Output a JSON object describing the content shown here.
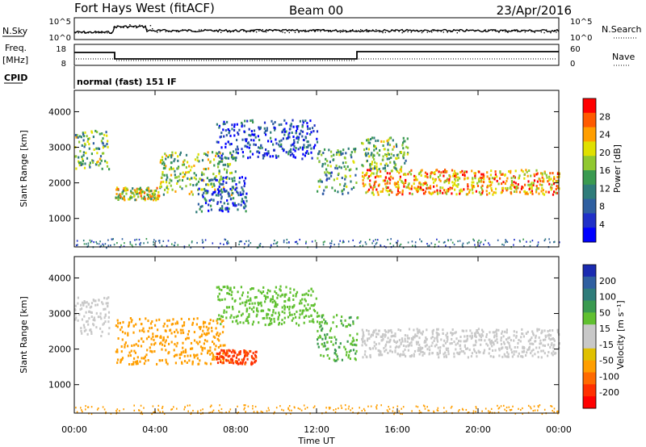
{
  "header": {
    "station": "Fort Hays West (fitACF)",
    "beam": "Beam 00",
    "date": "23/Apr/2016"
  },
  "summary": {
    "nsky_label": "N.Sky",
    "nsky_ticks": [
      "10^5",
      "10^0"
    ],
    "nsearch_label": "N.Search",
    "nsearch_ticks": [
      "10^5",
      "10^0"
    ],
    "freq_label": "Freq.",
    "freq_unit": "[MHz]",
    "freq_ticks": [
      "18",
      "8"
    ],
    "nave_label": "Nave",
    "nave_ticks": [
      "60",
      "0"
    ],
    "cpid_label": "CPID",
    "cpid_text": "normal (fast) 151 IF"
  },
  "chart_data": [
    {
      "type": "heatmap",
      "name": "power-panel",
      "ylabel": "Slant Range [km]",
      "yticks": [
        "4000",
        "3000",
        "2000",
        "1000"
      ],
      "ytick_values": [
        4000,
        3000,
        2000,
        1000
      ],
      "ylim": [
        200,
        4600
      ],
      "xticks": [
        "00:00",
        "04:00",
        "08:00",
        "12:00",
        "16:00",
        "20:00",
        "00:00"
      ],
      "xtick_hours": [
        0,
        4,
        8,
        12,
        16,
        20,
        24
      ],
      "xlim": [
        0,
        24
      ],
      "colorbar": {
        "label": "Power [dB]",
        "ticks": [
          "28",
          "24",
          "20",
          "16",
          "12",
          "8",
          "4"
        ],
        "colors": [
          "#ff0000",
          "#ff5a00",
          "#ff9e00",
          "#e0e000",
          "#90c830",
          "#3a9a50",
          "#2f7c7a",
          "#2f5fa0",
          "#2030c8",
          "#0000ff"
        ]
      },
      "features": [
        {
          "t0": 0.0,
          "t1": 1.7,
          "r_lo": 2400,
          "r_hi": 3500,
          "level": 16
        },
        {
          "t0": 2.0,
          "t1": 4.2,
          "r_lo": 1550,
          "r_hi": 1900,
          "level": 20
        },
        {
          "t0": 4.2,
          "t1": 8.0,
          "r_lo": 1700,
          "r_hi": 2900,
          "level": 18
        },
        {
          "t0": 6.0,
          "t1": 8.5,
          "r_lo": 1200,
          "r_hi": 2200,
          "level": 8
        },
        {
          "t0": 7.0,
          "t1": 12.0,
          "r_lo": 2700,
          "r_hi": 3800,
          "level": 8
        },
        {
          "t0": 12.0,
          "t1": 14.0,
          "r_lo": 1700,
          "r_hi": 3000,
          "level": 14
        },
        {
          "t0": 14.2,
          "t1": 24.0,
          "r_lo": 1700,
          "r_hi": 2400,
          "level": 24
        },
        {
          "t0": 14.2,
          "t1": 16.5,
          "r_lo": 2400,
          "r_hi": 3300,
          "level": 16
        }
      ]
    },
    {
      "type": "heatmap",
      "name": "velocity-panel",
      "ylabel": "Slant Range [km]",
      "yticks": [
        "4000",
        "3000",
        "2000",
        "1000"
      ],
      "ytick_values": [
        4000,
        3000,
        2000,
        1000
      ],
      "ylim": [
        200,
        4600
      ],
      "xticks": [
        "00:00",
        "04:00",
        "08:00",
        "12:00",
        "16:00",
        "20:00",
        "00:00"
      ],
      "xtick_hours": [
        0,
        4,
        8,
        12,
        16,
        20,
        24
      ],
      "xlim": [
        0,
        24
      ],
      "xlabel": "Time UT",
      "colorbar": {
        "label": "Velocity [m s⁻¹]",
        "ticks": [
          "200",
          "100",
          "50",
          "15",
          "-15",
          "-50",
          "-100",
          "-200"
        ],
        "colors": [
          "#1a2ab0",
          "#2f5fa0",
          "#2f7c7a",
          "#3a9a50",
          "#60c030",
          "#c8c8c8",
          "#c8c8c8",
          "#e0c000",
          "#ff9e00",
          "#ff6a00",
          "#ff3000",
          "#ff0000"
        ]
      },
      "features": [
        {
          "t0": 0.0,
          "t1": 1.7,
          "r_lo": 2400,
          "r_hi": 3500,
          "level": 0
        },
        {
          "t0": 2.0,
          "t1": 7.5,
          "r_lo": 1600,
          "r_hi": 2900,
          "level": -30
        },
        {
          "t0": 7.0,
          "t1": 9.0,
          "r_lo": 1600,
          "r_hi": 2000,
          "level": -80
        },
        {
          "t0": 7.0,
          "t1": 12.0,
          "r_lo": 2700,
          "r_hi": 3800,
          "level": 30
        },
        {
          "t0": 12.0,
          "t1": 14.0,
          "r_lo": 1700,
          "r_hi": 3000,
          "level": 40
        },
        {
          "t0": 14.2,
          "t1": 24.0,
          "r_lo": 1800,
          "r_hi": 2600,
          "level": 0
        }
      ]
    }
  ]
}
